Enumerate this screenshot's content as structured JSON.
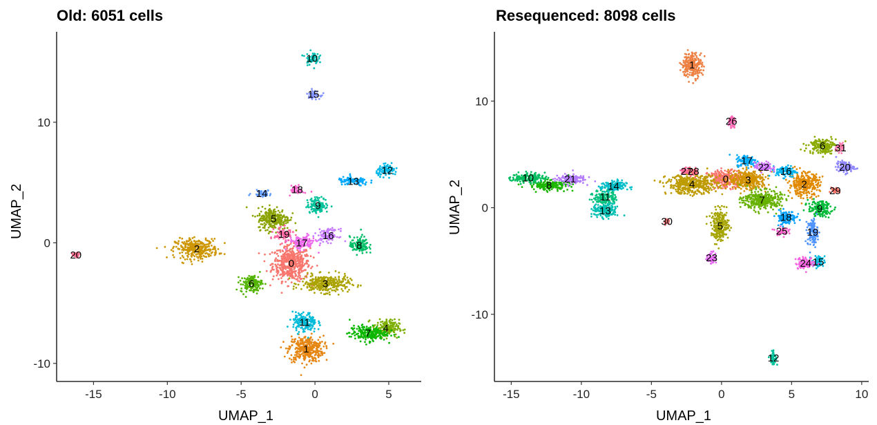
{
  "chart_data": [
    {
      "type": "scatter",
      "title": "Old: 6051 cells",
      "xlabel": "UMAP_1",
      "ylabel": "UMAP_2",
      "xlim": [
        -17.5,
        7.2
      ],
      "ylim": [
        -11.5,
        17.5
      ],
      "xticks": [
        -15,
        -10,
        -5,
        0,
        5
      ],
      "yticks": [
        -10,
        0,
        10
      ],
      "grid": false,
      "legend": "none",
      "clusters": [
        {
          "label": "0",
          "x": -1.6,
          "y": -1.7,
          "color": "#F8766D"
        },
        {
          "label": "1",
          "x": -0.6,
          "y": -8.8,
          "color": "#E68613"
        },
        {
          "label": "2",
          "x": -8.0,
          "y": -0.5,
          "color": "#CD9600"
        },
        {
          "label": "3",
          "x": 0.7,
          "y": -3.4,
          "color": "#ABA300"
        },
        {
          "label": "4",
          "x": 4.8,
          "y": -7.1,
          "color": "#7CAE00"
        },
        {
          "label": "5",
          "x": -2.8,
          "y": 2.0,
          "color": "#8BA300"
        },
        {
          "label": "6",
          "x": -4.3,
          "y": -3.4,
          "color": "#53B400"
        },
        {
          "label": "7",
          "x": 3.6,
          "y": -7.5,
          "color": "#0CB702"
        },
        {
          "label": "8",
          "x": 3.0,
          "y": -0.2,
          "color": "#00BE67"
        },
        {
          "label": "9",
          "x": 0.2,
          "y": 3.1,
          "color": "#00C19A"
        },
        {
          "label": "10",
          "x": -0.2,
          "y": 15.3,
          "color": "#00BFB2"
        },
        {
          "label": "11",
          "x": -0.7,
          "y": -6.6,
          "color": "#00BCD8"
        },
        {
          "label": "12",
          "x": 4.9,
          "y": 6.0,
          "color": "#00B8E7"
        },
        {
          "label": "13",
          "x": 2.6,
          "y": 5.1,
          "color": "#00A9FF"
        },
        {
          "label": "14",
          "x": -3.6,
          "y": 4.1,
          "color": "#619CFF"
        },
        {
          "label": "15",
          "x": -0.1,
          "y": 12.3,
          "color": "#8494FF"
        },
        {
          "label": "16",
          "x": 0.9,
          "y": 0.6,
          "color": "#C77CFF"
        },
        {
          "label": "17",
          "x": -0.9,
          "y": 0.0,
          "color": "#ED68ED"
        },
        {
          "label": "18",
          "x": -1.2,
          "y": 4.4,
          "color": "#FF61CC"
        },
        {
          "label": "19",
          "x": -2.1,
          "y": 0.7,
          "color": "#FF68A1"
        },
        {
          "label": "20",
          "x": -16.2,
          "y": -1.0,
          "color": "#FF6C91"
        }
      ]
    },
    {
      "type": "scatter",
      "title": "Resequenced: 8098 cells",
      "xlabel": "UMAP_1",
      "ylabel": "UMAP_2",
      "xlim": [
        -16.2,
        10.5
      ],
      "ylim": [
        -16.3,
        16.5
      ],
      "xticks": [
        -15,
        -10,
        -5,
        0,
        5,
        10
      ],
      "yticks": [
        -10,
        0,
        10
      ],
      "grid": false,
      "legend": "none",
      "clusters": [
        {
          "label": "0",
          "x": 0.3,
          "y": 2.7,
          "color": "#F8766D"
        },
        {
          "label": "1",
          "x": -2.1,
          "y": 13.4,
          "color": "#EE8043"
        },
        {
          "label": "2",
          "x": 5.9,
          "y": 2.2,
          "color": "#E18A00"
        },
        {
          "label": "3",
          "x": 1.9,
          "y": 2.6,
          "color": "#D29300"
        },
        {
          "label": "4",
          "x": -2.1,
          "y": 2.2,
          "color": "#BE9C00"
        },
        {
          "label": "5",
          "x": -0.1,
          "y": -1.7,
          "color": "#A6A400"
        },
        {
          "label": "6",
          "x": 7.2,
          "y": 5.8,
          "color": "#8BAB00"
        },
        {
          "label": "7",
          "x": 2.9,
          "y": 0.7,
          "color": "#67B100"
        },
        {
          "label": "8",
          "x": -12.3,
          "y": 2.1,
          "color": "#1BB600"
        },
        {
          "label": "9",
          "x": 7.0,
          "y": -0.1,
          "color": "#00BA38"
        },
        {
          "label": "10",
          "x": -13.8,
          "y": 2.8,
          "color": "#00BD5F"
        },
        {
          "label": "11",
          "x": -8.3,
          "y": 1.0,
          "color": "#00C07E"
        },
        {
          "label": "12",
          "x": 3.7,
          "y": -14.1,
          "color": "#00C19A"
        },
        {
          "label": "13",
          "x": -8.3,
          "y": -0.3,
          "color": "#00C0B3"
        },
        {
          "label": "14",
          "x": -7.7,
          "y": 2.0,
          "color": "#00BECA"
        },
        {
          "label": "15",
          "x": 6.9,
          "y": -5.1,
          "color": "#00BADE"
        },
        {
          "label": "16",
          "x": 4.6,
          "y": 3.4,
          "color": "#00B3EF"
        },
        {
          "label": "17",
          "x": 1.8,
          "y": 4.4,
          "color": "#00ABFC"
        },
        {
          "label": "18",
          "x": 4.6,
          "y": -0.9,
          "color": "#00A0FF"
        },
        {
          "label": "19",
          "x": 6.5,
          "y": -2.3,
          "color": "#4F94FF"
        },
        {
          "label": "20",
          "x": 8.8,
          "y": 3.8,
          "color": "#8F87FF"
        },
        {
          "label": "21",
          "x": -10.8,
          "y": 2.7,
          "color": "#B47CFF"
        },
        {
          "label": "22",
          "x": 3.0,
          "y": 3.8,
          "color": "#CF72FF"
        },
        {
          "label": "23",
          "x": -0.7,
          "y": -4.7,
          "color": "#E56AF4"
        },
        {
          "label": "24",
          "x": 6.0,
          "y": -5.2,
          "color": "#F565E2"
        },
        {
          "label": "25",
          "x": 4.3,
          "y": -2.2,
          "color": "#FF62CD"
        },
        {
          "label": "26",
          "x": 0.7,
          "y": 8.1,
          "color": "#FF63B4"
        },
        {
          "label": "27",
          "x": -2.5,
          "y": 3.4,
          "color": "#FF6899"
        },
        {
          "label": "28",
          "x": -2.0,
          "y": 3.4,
          "color": "#FF6C7F"
        },
        {
          "label": "29",
          "x": 8.1,
          "y": 1.6,
          "color": "#F8766D"
        },
        {
          "label": "30",
          "x": -3.9,
          "y": -1.3,
          "color": "#F0787A"
        },
        {
          "label": "31",
          "x": 8.5,
          "y": 5.6,
          "color": "#FF7BB0"
        }
      ]
    }
  ]
}
